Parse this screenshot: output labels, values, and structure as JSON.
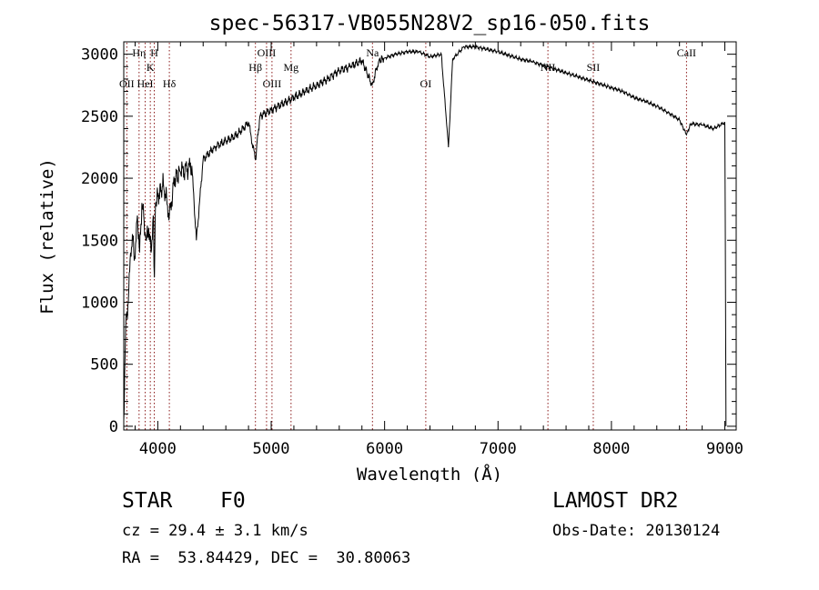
{
  "chart_data": {
    "type": "line",
    "title": "spec-56317-VB055N28V2_sp16-050.fits",
    "xlabel": "Wavelength (Å)",
    "ylabel": "Flux (relative)",
    "xlim": [
      3700,
      9100
    ],
    "ylim": [
      -30,
      3100
    ],
    "xticks": [
      4000,
      5000,
      6000,
      7000,
      8000,
      9000
    ],
    "yticks": [
      0,
      500,
      1000,
      1500,
      2000,
      2500,
      3000
    ],
    "grid": false,
    "line_color": "#000000",
    "marker_color": "#8b1a1a",
    "series": [
      {
        "x": [
          3700,
          3720,
          3740,
          3760,
          3780,
          3800,
          3820,
          3840,
          3860,
          3880,
          3900,
          3920,
          3940,
          3960,
          3970,
          3980,
          4000,
          4050,
          4102,
          4150,
          4200,
          4300,
          4340,
          4400,
          4500,
          4600,
          4700,
          4800,
          4861,
          4900,
          5000,
          5100,
          5200,
          5300,
          5400,
          5500,
          5600,
          5700,
          5800,
          5890,
          5950,
          6000,
          6100,
          6200,
          6300,
          6400,
          6500,
          6563,
          6600,
          6700,
          6800,
          6900,
          7000,
          7100,
          7200,
          7300,
          7400,
          7500,
          7600,
          7700,
          7800,
          7900,
          8000,
          8100,
          8200,
          8300,
          8400,
          8500,
          8600,
          8662,
          8700,
          8800,
          8900,
          9000,
          9010
        ],
        "y": [
          50,
          900,
          1000,
          1400,
          1500,
          1350,
          1700,
          1400,
          1800,
          1650,
          1500,
          1600,
          1400,
          1700,
          1200,
          1800,
          1850,
          1950,
          1700,
          2000,
          2050,
          2100,
          1500,
          2150,
          2250,
          2300,
          2350,
          2450,
          2150,
          2500,
          2550,
          2600,
          2650,
          2700,
          2750,
          2800,
          2870,
          2900,
          2950,
          2750,
          2950,
          2970,
          3000,
          3020,
          3020,
          2980,
          3000,
          2250,
          2960,
          3060,
          3060,
          3040,
          3020,
          2990,
          2960,
          2940,
          2910,
          2880,
          2850,
          2820,
          2790,
          2760,
          2730,
          2700,
          2650,
          2620,
          2580,
          2530,
          2470,
          2350,
          2440,
          2430,
          2400,
          2450,
          0
        ]
      }
    ],
    "lines": [
      {
        "label": "OII",
        "x": 3727,
        "row": 3
      },
      {
        "label": "Hη",
        "x": 3835,
        "row": 1
      },
      {
        "label": "HeI",
        "x": 3889,
        "row": 3
      },
      {
        "label": "K",
        "x": 3934,
        "row": 2
      },
      {
        "label": "H",
        "x": 3969,
        "row": 1
      },
      {
        "label": "Hδ",
        "x": 4102,
        "row": 3
      },
      {
        "label": "Hβ",
        "x": 4861,
        "row": 2
      },
      {
        "label": "OIII",
        "x": 4959,
        "row": 1
      },
      {
        "label": "OIII",
        "x": 5007,
        "row": 3
      },
      {
        "label": "Mg",
        "x": 5175,
        "row": 2
      },
      {
        "label": "Na",
        "x": 5893,
        "row": 1
      },
      {
        "label": "OI",
        "x": 6363,
        "row": 3
      },
      {
        "label": "NII",
        "x": 7440,
        "row": 2
      },
      {
        "label": "SII",
        "x": 7840,
        "row": 2
      },
      {
        "label": "CaII",
        "x": 8662,
        "row": 1
      }
    ]
  },
  "info": {
    "class": "STAR",
    "subclass": "F0",
    "survey": "LAMOST DR2",
    "cz": "cz = 29.4 ± 3.1 km/s",
    "obs_date": "Obs-Date: 20130124",
    "coords": "RA =  53.84429, DEC =  30.80063"
  }
}
